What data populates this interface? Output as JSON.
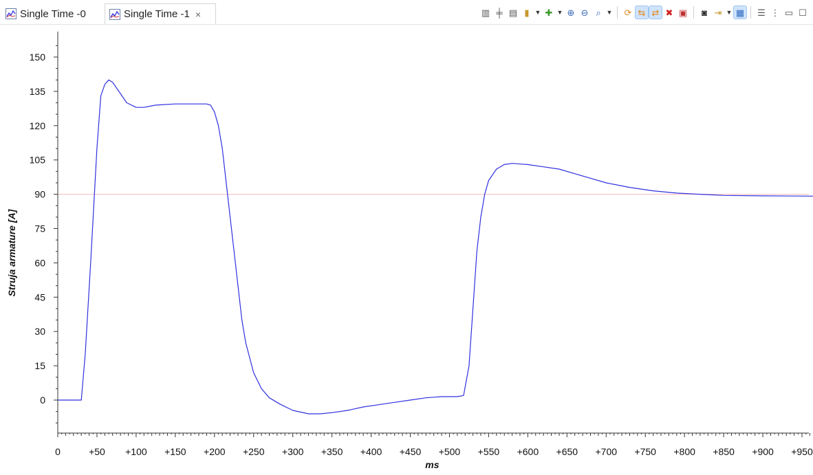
{
  "tabs": [
    {
      "label": "Single Time -0",
      "active": false
    },
    {
      "label": "Single Time -1",
      "active": true,
      "close": "×"
    }
  ],
  "toolbar": {
    "icons": [
      "columns-icon",
      "align-icon",
      "fit-icon",
      "cursor-marker-icon",
      "add-signal-icon",
      "zoom-in-icon",
      "zoom-out-icon",
      "zoom-fit-icon",
      "refresh-icon",
      "sync-icon",
      "sync-all-icon",
      "delete-icon",
      "export-icon",
      "find-icon",
      "step-icon",
      "layout-icon",
      "list-icon",
      "more-icon",
      "minimize-icon",
      "maximize-icon"
    ]
  },
  "chart_data": {
    "type": "line",
    "ylabel": "Struja armature [A]",
    "xlabel": "ms",
    "x_tick_labels": [
      "0",
      "+50",
      "+100",
      "+150",
      "+200",
      "+250",
      "+300",
      "+350",
      "+400",
      "+450",
      "+500",
      "+550",
      "+600",
      "+650",
      "+700",
      "+750",
      "+800",
      "+850",
      "+900",
      "+950"
    ],
    "x_ticks": [
      0,
      50,
      100,
      150,
      200,
      250,
      300,
      350,
      400,
      450,
      500,
      550,
      600,
      650,
      700,
      750,
      800,
      850,
      900,
      950
    ],
    "y_ticks": [
      0,
      15,
      30,
      45,
      60,
      75,
      90,
      105,
      120,
      135,
      150
    ],
    "y_tick_labels": [
      "0",
      "15",
      "30",
      "45",
      "60",
      "75",
      "90",
      "105",
      "120",
      "135",
      "150"
    ],
    "xlim": [
      0,
      966
    ],
    "ylim": [
      -15,
      160
    ],
    "reference_line": {
      "y": 90,
      "color": "#f4b8b8"
    },
    "series": [
      {
        "color": "#2f2fe0",
        "points": [
          [
            0,
            0
          ],
          [
            30,
            0
          ],
          [
            35,
            20
          ],
          [
            42,
            60
          ],
          [
            50,
            110
          ],
          [
            55,
            133
          ],
          [
            60,
            138
          ],
          [
            65,
            140
          ],
          [
            70,
            139
          ],
          [
            78,
            135
          ],
          [
            88,
            130
          ],
          [
            100,
            128
          ],
          [
            110,
            128
          ],
          [
            125,
            129
          ],
          [
            150,
            129.5
          ],
          [
            175,
            129.5
          ],
          [
            190,
            129.5
          ],
          [
            195,
            129
          ],
          [
            200,
            126
          ],
          [
            205,
            120
          ],
          [
            210,
            110
          ],
          [
            215,
            95
          ],
          [
            220,
            80
          ],
          [
            225,
            65
          ],
          [
            230,
            50
          ],
          [
            235,
            35
          ],
          [
            240,
            25
          ],
          [
            250,
            12
          ],
          [
            260,
            5
          ],
          [
            270,
            1
          ],
          [
            285,
            -2
          ],
          [
            300,
            -4.5
          ],
          [
            320,
            -6
          ],
          [
            335,
            -6
          ],
          [
            350,
            -5.5
          ],
          [
            370,
            -4.5
          ],
          [
            390,
            -3
          ],
          [
            410,
            -2
          ],
          [
            430,
            -1
          ],
          [
            450,
            0
          ],
          [
            470,
            1
          ],
          [
            490,
            1.5
          ],
          [
            510,
            1.5
          ],
          [
            518,
            2
          ],
          [
            525,
            15
          ],
          [
            530,
            40
          ],
          [
            535,
            65
          ],
          [
            540,
            80
          ],
          [
            545,
            90
          ],
          [
            550,
            96
          ],
          [
            560,
            101
          ],
          [
            570,
            103
          ],
          [
            580,
            103.5
          ],
          [
            600,
            103
          ],
          [
            620,
            102
          ],
          [
            640,
            101
          ],
          [
            660,
            99
          ],
          [
            680,
            97
          ],
          [
            700,
            95
          ],
          [
            730,
            93
          ],
          [
            760,
            91.5
          ],
          [
            790,
            90.5
          ],
          [
            820,
            90
          ],
          [
            850,
            89.5
          ],
          [
            900,
            89.3
          ],
          [
            966,
            89.2
          ]
        ]
      }
    ]
  }
}
